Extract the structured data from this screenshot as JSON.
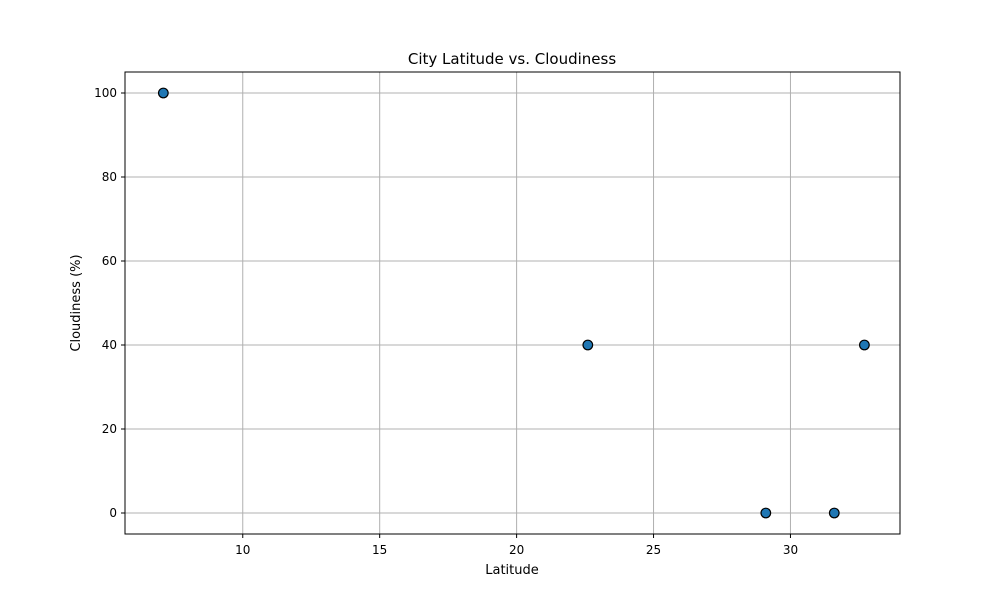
{
  "chart_data": {
    "type": "scatter",
    "title": "City Latitude vs. Cloudiness",
    "xlabel": "Latitude",
    "ylabel": "Cloudiness (%)",
    "xlim": [
      5.7,
      34.0
    ],
    "ylim": [
      -5,
      105
    ],
    "xticks": [
      10,
      15,
      20,
      25,
      30
    ],
    "yticks": [
      0,
      20,
      40,
      60,
      80,
      100
    ],
    "xtick_labels": [
      "10",
      "15",
      "20",
      "25",
      "30"
    ],
    "ytick_labels": [
      "0",
      "20",
      "40",
      "60",
      "80",
      "100"
    ],
    "grid": true,
    "series": [
      {
        "color": "#1f77b4",
        "edgecolor": "#000000",
        "points": [
          {
            "x": 7.1,
            "y": 100
          },
          {
            "x": 22.6,
            "y": 40
          },
          {
            "x": 29.1,
            "y": 0
          },
          {
            "x": 31.6,
            "y": 0
          },
          {
            "x": 32.7,
            "y": 40
          }
        ]
      }
    ]
  }
}
